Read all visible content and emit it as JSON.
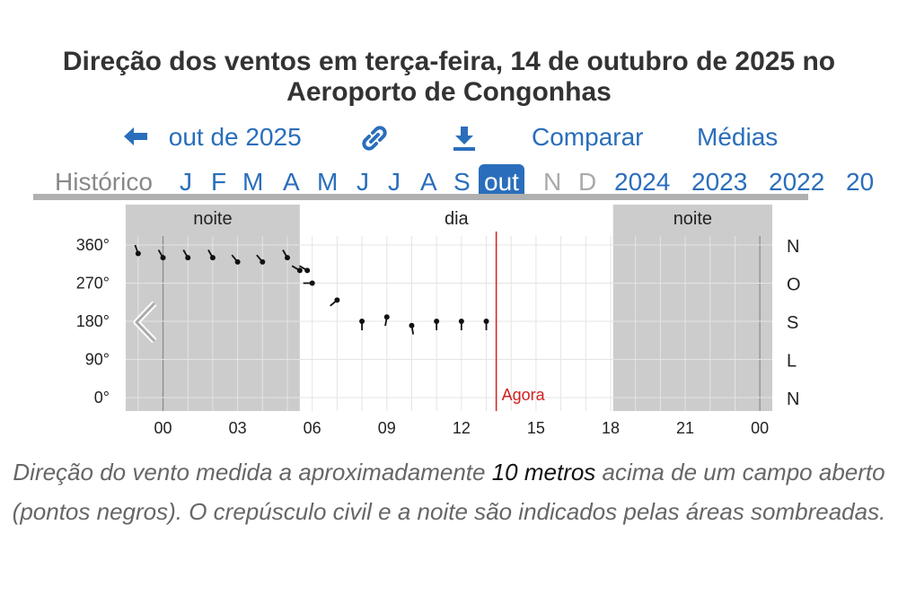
{
  "title_line1": "Direção dos ventos em terça-feira, 14 de outubro de 2025 no",
  "title_line2": "Aeroporto de Congonhas",
  "nav": {
    "back_label": "out de 2025",
    "compare_label": "Comparar",
    "averages_label": "Médias"
  },
  "months": {
    "history_label": "Histórico",
    "items": [
      "J",
      "F",
      "M",
      "A",
      "M",
      "J",
      "J",
      "A",
      "S",
      "out",
      "N",
      "D"
    ],
    "years": [
      "2024",
      "2023",
      "2022",
      "20"
    ]
  },
  "colors": {
    "accent": "#2a6ebb",
    "now_line": "#d22020",
    "night_shade": "#cccccc"
  },
  "icons": [
    "arrow-left-icon",
    "link-icon",
    "download-icon",
    "chevron-left-icon"
  ],
  "chart_data": {
    "type": "scatter",
    "title": "Direção dos ventos em terça-feira, 14 de outubro de 2025 no Aeroporto de Congonhas",
    "periods": [
      {
        "label": "noite",
        "from": -1.5,
        "to": 5.5
      },
      {
        "label": "dia",
        "from": 5.5,
        "to": 18.1
      },
      {
        "label": "noite",
        "from": 18.1,
        "to": 24.5
      }
    ],
    "x_ticks": [
      "00",
      "03",
      "06",
      "09",
      "12",
      "15",
      "18",
      "21",
      "00"
    ],
    "x_tick_hours": [
      0,
      3,
      6,
      9,
      12,
      15,
      18,
      21,
      24
    ],
    "xlim": [
      -1.5,
      24.5
    ],
    "ylim": [
      0,
      360
    ],
    "y_ticks_left": [
      "360°",
      "270°",
      "180°",
      "90°",
      "0°"
    ],
    "y_ticks_right": [
      "N",
      "O",
      "S",
      "L",
      "N"
    ],
    "y_tick_values": [
      360,
      270,
      180,
      90,
      0
    ],
    "now_label": "Agora",
    "now_hour": 13.4,
    "x": [
      -1.0,
      0.0,
      1.0,
      2.0,
      3.0,
      4.0,
      5.0,
      5.5,
      5.8,
      6.0,
      7.0,
      8.0,
      9.0,
      10.0,
      11.0,
      12.0,
      13.0
    ],
    "values": [
      340,
      330,
      330,
      330,
      320,
      320,
      330,
      300,
      300,
      270,
      230,
      180,
      190,
      170,
      180,
      180,
      180
    ],
    "ylabel": "",
    "xlabel": ""
  },
  "caption": {
    "part1": "Direção do vento medida a aproximadamente ",
    "emph": "10 metros",
    "part2": " acima de um campo aberto (pontos negros). O crepúsculo civil e a noite são indicados pelas áreas sombreadas."
  }
}
